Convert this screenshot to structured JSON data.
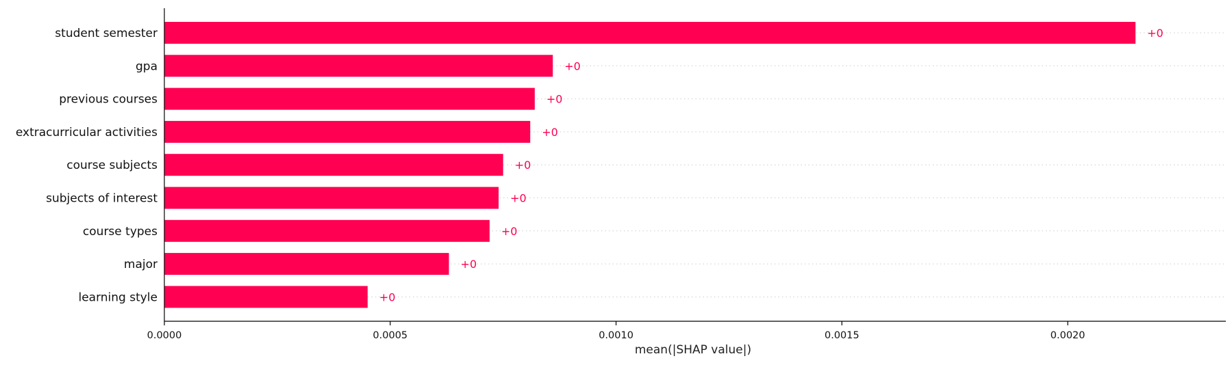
{
  "chart_data": {
    "type": "bar",
    "orientation": "horizontal",
    "xlabel": "mean(|SHAP value|)",
    "ylabel": "",
    "title": "",
    "xlim": [
      0,
      0.00235
    ],
    "xticks": [
      0.0,
      0.0005,
      0.001,
      0.0015,
      0.002
    ],
    "xtick_labels": [
      "0.0000",
      "0.0005",
      "0.0010",
      "0.0015",
      "0.0020"
    ],
    "categories": [
      "student semester",
      "gpa",
      "previous courses",
      "extracurricular activities",
      "course subjects",
      "subjects of interest",
      "course types",
      "major",
      "learning style"
    ],
    "values": [
      0.00215,
      0.00086,
      0.00082,
      0.00081,
      0.00075,
      0.00074,
      0.00072,
      0.00063,
      0.00045
    ],
    "value_labels": [
      "+0",
      "+0",
      "+0",
      "+0",
      "+0",
      "+0",
      "+0",
      "+0",
      "+0"
    ],
    "bar_color": "#ff0052",
    "label_color": "#ff0052",
    "grid": "dotted horizontal row guides"
  }
}
